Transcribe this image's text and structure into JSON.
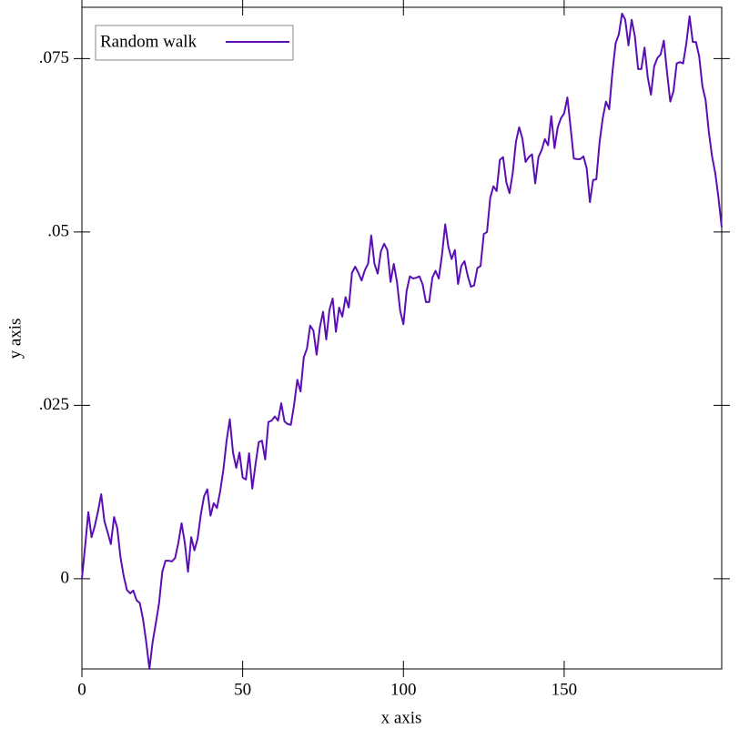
{
  "chart_data": {
    "type": "line",
    "xlabel": "x axis",
    "ylabel": "y axis",
    "x": [
      0,
      1,
      2,
      3,
      4,
      5,
      6,
      7,
      8,
      9,
      10,
      11,
      12,
      13,
      14,
      15,
      16,
      17,
      18,
      19,
      20,
      21,
      22,
      23,
      24,
      25,
      26,
      27,
      28,
      29,
      30,
      31,
      32,
      33,
      34,
      35,
      36,
      37,
      38,
      39,
      40,
      41,
      42,
      43,
      44,
      45,
      46,
      47,
      48,
      49,
      50,
      51,
      52,
      53,
      54,
      55,
      56,
      57,
      58,
      59,
      60,
      61,
      62,
      63,
      64,
      65,
      66,
      67,
      68,
      69,
      70,
      71,
      72,
      73,
      74,
      75,
      76,
      77,
      78,
      79,
      80,
      81,
      82,
      83,
      84,
      85,
      86,
      87,
      88,
      89,
      90,
      91,
      92,
      93,
      94,
      95,
      96,
      97,
      98,
      99,
      100,
      101,
      102,
      103,
      104,
      105,
      106,
      107,
      108,
      109,
      110,
      111,
      112,
      113,
      114,
      115,
      116,
      117,
      118,
      119,
      120,
      121,
      122,
      123,
      124,
      125,
      126,
      127,
      128,
      129,
      130,
      131,
      132,
      133,
      134,
      135,
      136,
      137,
      138,
      139,
      140,
      141,
      142,
      143,
      144,
      145,
      146,
      147,
      148,
      149,
      150,
      151,
      152,
      153,
      154,
      155,
      156,
      157,
      158,
      159,
      160,
      161,
      162,
      163,
      164,
      165,
      166,
      167,
      168,
      169,
      170,
      171,
      172,
      173,
      174,
      175,
      176,
      177,
      178,
      179,
      180,
      181,
      182,
      183,
      184,
      185,
      186,
      187,
      188,
      189,
      190,
      191,
      192,
      193,
      194,
      195,
      196,
      197,
      198,
      199
    ],
    "series": [
      {
        "name": "Random walk",
        "color": "#5a0fb4",
        "values": [
          0,
          0.0047,
          0.0096,
          0.006,
          0.0076,
          0.0097,
          0.0122,
          0.0083,
          0.0067,
          0.005,
          0.0089,
          0.0073,
          0.0031,
          0.0004,
          -0.0016,
          -0.0021,
          -0.0017,
          -0.0031,
          -0.0035,
          -0.0058,
          -0.0091,
          -0.013,
          -0.0091,
          -0.0064,
          -0.0035,
          0.001,
          0.0026,
          0.0026,
          0.0025,
          0.003,
          0.0052,
          0.008,
          0.0052,
          0.001,
          0.006,
          0.0041,
          0.0058,
          0.0093,
          0.0119,
          0.0129,
          0.0091,
          0.0109,
          0.0102,
          0.0126,
          0.0157,
          0.0199,
          0.023,
          0.0182,
          0.016,
          0.0182,
          0.0146,
          0.0143,
          0.0181,
          0.013,
          0.0165,
          0.0197,
          0.0199,
          0.0172,
          0.0226,
          0.0228,
          0.0234,
          0.0228,
          0.0253,
          0.0227,
          0.0223,
          0.0222,
          0.0251,
          0.0287,
          0.027,
          0.0319,
          0.0332,
          0.0365,
          0.0358,
          0.0323,
          0.0362,
          0.0385,
          0.0345,
          0.0388,
          0.0404,
          0.0356,
          0.0391,
          0.0378,
          0.0406,
          0.0391,
          0.0441,
          0.045,
          0.0441,
          0.043,
          0.0445,
          0.0454,
          0.0495,
          0.0454,
          0.044,
          0.0472,
          0.0483,
          0.0474,
          0.0428,
          0.0454,
          0.0428,
          0.0386,
          0.0367,
          0.0415,
          0.0436,
          0.0433,
          0.0434,
          0.0436,
          0.0424,
          0.0399,
          0.0399,
          0.0434,
          0.0444,
          0.0433,
          0.0467,
          0.0511,
          0.0478,
          0.0461,
          0.0474,
          0.0425,
          0.0451,
          0.0458,
          0.0437,
          0.0421,
          0.0423,
          0.0448,
          0.0451,
          0.0497,
          0.05,
          0.0549,
          0.0566,
          0.0559,
          0.0604,
          0.0608,
          0.0572,
          0.0556,
          0.0585,
          0.063,
          0.0651,
          0.0635,
          0.0601,
          0.0608,
          0.0612,
          0.057,
          0.0608,
          0.0618,
          0.0634,
          0.0625,
          0.0667,
          0.0621,
          0.0651,
          0.0664,
          0.0671,
          0.0694,
          0.0651,
          0.0606,
          0.0605,
          0.0605,
          0.0609,
          0.0592,
          0.0543,
          0.0575,
          0.0576,
          0.0629,
          0.0664,
          0.0688,
          0.0677,
          0.073,
          0.0772,
          0.0785,
          0.0815,
          0.0806,
          0.0769,
          0.0806,
          0.0782,
          0.0735,
          0.0735,
          0.0766,
          0.0723,
          0.0698,
          0.0739,
          0.0751,
          0.0756,
          0.0776,
          0.073,
          0.0688,
          0.0703,
          0.0743,
          0.0745,
          0.0743,
          0.0772,
          0.0811,
          0.0774,
          0.0774,
          0.0753,
          0.071,
          0.069,
          0.0644,
          0.0609,
          0.0585,
          0.0549,
          0.0507
        ]
      }
    ],
    "xlim": [
      0,
      199
    ],
    "ylim": [
      -0.013,
      0.0824
    ],
    "xticks": [
      0,
      50,
      100,
      150
    ],
    "yticks": [
      0,
      {
        "value": 0.025,
        "label": ".025"
      },
      {
        "value": 0.05,
        "label": ".05"
      },
      {
        "value": 0.075,
        "label": ".075"
      }
    ],
    "legend": "top-left",
    "grid": false
  }
}
